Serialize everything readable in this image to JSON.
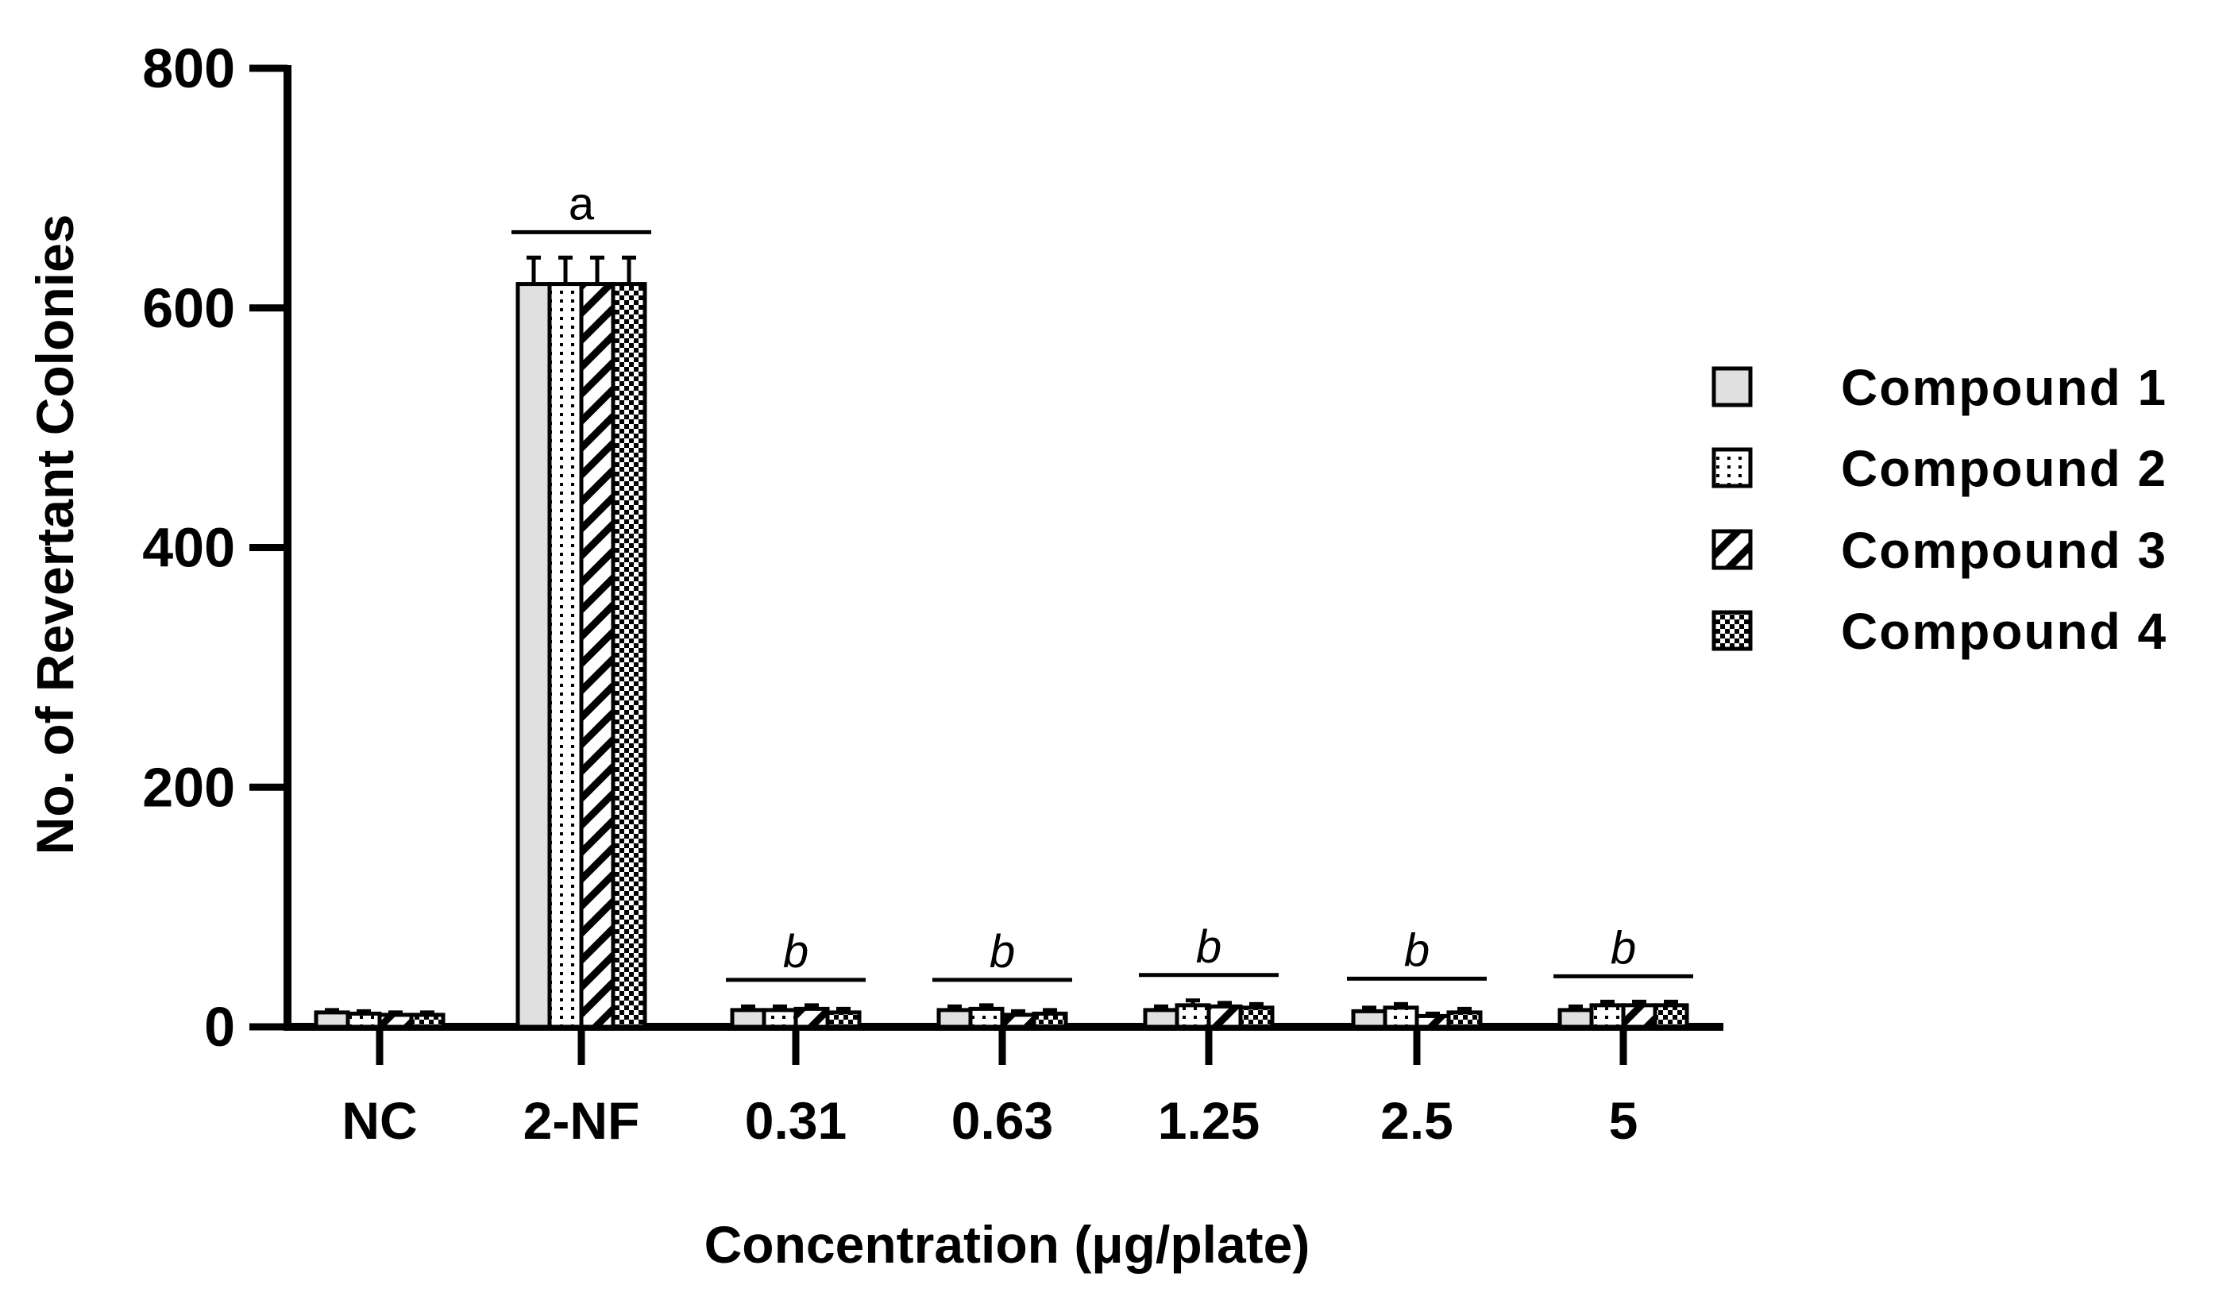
{
  "chart_data": {
    "type": "bar",
    "xlabel": "Concentration (μg/plate)",
    "ylabel": "No. of Revertant Colonies",
    "ylim": [
      0,
      800
    ],
    "yticks": [
      0,
      200,
      400,
      600,
      800
    ],
    "categories": [
      "NC",
      "2-NF",
      "0.31",
      "0.63",
      "1.25",
      "2.5",
      "5"
    ],
    "series": [
      {
        "name": "Compound 1",
        "pattern": "solid-gray",
        "fill": "#e0e0e0",
        "values": [
          12,
          620,
          14,
          14,
          14,
          13,
          14
        ],
        "errors": [
          2,
          22,
          3,
          3,
          3,
          3,
          3
        ]
      },
      {
        "name": "Compound 2",
        "pattern": "dots",
        "fill": "#ffffff",
        "values": [
          11,
          620,
          14,
          15,
          18,
          16,
          18
        ],
        "errors": [
          2,
          22,
          3,
          3,
          4,
          3,
          3
        ]
      },
      {
        "name": "Compound 3",
        "pattern": "diagonal-hatch",
        "fill": "#ffffff",
        "values": [
          10,
          620,
          15,
          10,
          17,
          9,
          18
        ],
        "errors": [
          2,
          22,
          3,
          3,
          3,
          2,
          3
        ]
      },
      {
        "name": "Compound 4",
        "pattern": "checker",
        "fill": "#ffffff",
        "values": [
          10,
          620,
          12,
          11,
          16,
          12,
          18
        ],
        "errors": [
          2,
          22,
          3,
          3,
          3,
          3,
          3
        ]
      }
    ],
    "significance": [
      {
        "category": "2-NF",
        "label": "a",
        "italic": false
      },
      {
        "category": "0.31",
        "label": "b",
        "italic": true
      },
      {
        "category": "0.63",
        "label": "b",
        "italic": true
      },
      {
        "category": "1.25",
        "label": "b",
        "italic": true
      },
      {
        "category": "2.5",
        "label": "b",
        "italic": true
      },
      {
        "category": "5",
        "label": "b",
        "italic": true
      }
    ],
    "legend_position": "right",
    "grid": false
  }
}
